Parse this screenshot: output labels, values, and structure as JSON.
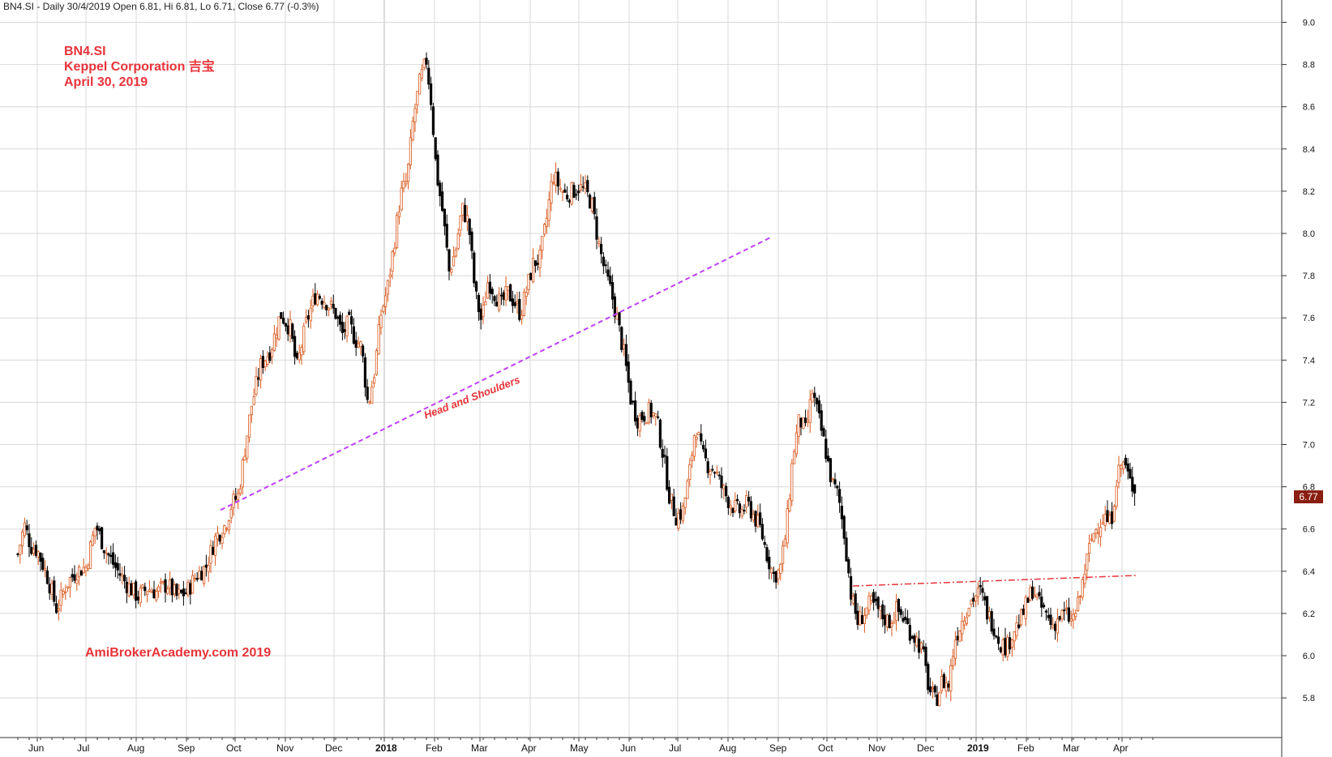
{
  "header": "BN4.SI - Daily 30/4/2019 Open 6.81, Hi 6.81, Lo 6.71, Close 6.77 (-0.3%)",
  "annotations": {
    "symbol": "BN4.SI",
    "company": "Keppel Corporation  吉宝",
    "date": "April 30, 2019",
    "watermark": "AmiBrokerAcademy.com 2019",
    "pattern_label": "Head and Shoulders"
  },
  "last_price_tag": "6.77",
  "colors": {
    "up_candle": "#d9581c",
    "down_candle": "#000000",
    "neckline": "#c040ff",
    "resistance": "#e8343a",
    "grid": "#d8d8d8",
    "annotation": "#e8343a",
    "price_tag": "#8a1e12"
  },
  "chart_data": {
    "type": "candlestick",
    "title": "",
    "xlabel": "",
    "ylabel": "",
    "ylim": [
      5.64,
      9.08
    ],
    "y_ticks": [
      "5.8",
      "6.0",
      "6.2",
      "6.4",
      "6.6",
      "6.8",
      "7.0",
      "7.2",
      "7.4",
      "7.6",
      "7.8",
      "8.0",
      "8.2",
      "8.4",
      "8.6",
      "8.8",
      "9.0"
    ],
    "x_ticks": [
      {
        "label": "Jun",
        "day": 0,
        "major": false
      },
      {
        "label": "Jul",
        "day": 30,
        "major": false
      },
      {
        "label": "Aug",
        "day": 61,
        "major": false
      },
      {
        "label": "Sep",
        "day": 92,
        "major": false
      },
      {
        "label": "Oct",
        "day": 122,
        "major": false
      },
      {
        "label": "Nov",
        "day": 153,
        "major": false
      },
      {
        "label": "Dec",
        "day": 183,
        "major": false
      },
      {
        "label": "2018",
        "day": 214,
        "major": true
      },
      {
        "label": "Feb",
        "day": 245,
        "major": false
      },
      {
        "label": "Mar",
        "day": 273,
        "major": false
      },
      {
        "label": "Apr",
        "day": 304,
        "major": false
      },
      {
        "label": "May",
        "day": 334,
        "major": false
      },
      {
        "label": "Jun",
        "day": 365,
        "major": false
      },
      {
        "label": "Jul",
        "day": 395,
        "major": false
      },
      {
        "label": "Aug",
        "day": 426,
        "major": false
      },
      {
        "label": "Sep",
        "day": 457,
        "major": false
      },
      {
        "label": "Oct",
        "day": 487,
        "major": false
      },
      {
        "label": "Nov",
        "day": 518,
        "major": false
      },
      {
        "label": "Dec",
        "day": 548,
        "major": false
      },
      {
        "label": "2019",
        "day": 579,
        "major": true
      },
      {
        "label": "Feb",
        "day": 610,
        "major": false
      },
      {
        "label": "Mar",
        "day": 638,
        "major": false
      },
      {
        "label": "Apr",
        "day": 669,
        "major": false
      }
    ],
    "close_path": [
      [
        -12,
        6.48
      ],
      [
        -8,
        6.62
      ],
      [
        -4,
        6.52
      ],
      [
        0,
        6.5
      ],
      [
        6,
        6.38
      ],
      [
        12,
        6.22
      ],
      [
        18,
        6.34
      ],
      [
        24,
        6.4
      ],
      [
        30,
        6.42
      ],
      [
        36,
        6.62
      ],
      [
        42,
        6.5
      ],
      [
        48,
        6.42
      ],
      [
        55,
        6.34
      ],
      [
        62,
        6.28
      ],
      [
        68,
        6.32
      ],
      [
        74,
        6.3
      ],
      [
        80,
        6.34
      ],
      [
        86,
        6.28
      ],
      [
        92,
        6.3
      ],
      [
        98,
        6.38
      ],
      [
        104,
        6.42
      ],
      [
        110,
        6.56
      ],
      [
        116,
        6.62
      ],
      [
        120,
        6.72
      ],
      [
        124,
        6.76
      ],
      [
        128,
        6.98
      ],
      [
        132,
        7.18
      ],
      [
        138,
        7.38
      ],
      [
        144,
        7.45
      ],
      [
        150,
        7.62
      ],
      [
        156,
        7.55
      ],
      [
        160,
        7.36
      ],
      [
        166,
        7.58
      ],
      [
        172,
        7.72
      ],
      [
        178,
        7.68
      ],
      [
        184,
        7.62
      ],
      [
        188,
        7.52
      ],
      [
        192,
        7.58
      ],
      [
        196,
        7.5
      ],
      [
        200,
        7.46
      ],
      [
        204,
        7.18
      ],
      [
        208,
        7.35
      ],
      [
        212,
        7.62
      ],
      [
        216,
        7.74
      ],
      [
        220,
        7.95
      ],
      [
        224,
        8.18
      ],
      [
        228,
        8.25
      ],
      [
        232,
        8.55
      ],
      [
        236,
        8.72
      ],
      [
        240,
        8.82
      ],
      [
        243,
        8.62
      ],
      [
        246,
        8.3
      ],
      [
        250,
        8.1
      ],
      [
        254,
        7.82
      ],
      [
        258,
        7.92
      ],
      [
        262,
        8.12
      ],
      [
        266,
        8.05
      ],
      [
        270,
        7.72
      ],
      [
        274,
        7.58
      ],
      [
        278,
        7.78
      ],
      [
        282,
        7.72
      ],
      [
        286,
        7.66
      ],
      [
        290,
        7.72
      ],
      [
        294,
        7.68
      ],
      [
        298,
        7.62
      ],
      [
        302,
        7.74
      ],
      [
        306,
        7.86
      ],
      [
        310,
        7.88
      ],
      [
        314,
        8.06
      ],
      [
        318,
        8.28
      ],
      [
        322,
        8.22
      ],
      [
        326,
        8.18
      ],
      [
        330,
        8.2
      ],
      [
        334,
        8.22
      ],
      [
        338,
        8.2
      ],
      [
        342,
        8.14
      ],
      [
        346,
        7.96
      ],
      [
        350,
        7.82
      ],
      [
        354,
        7.72
      ],
      [
        358,
        7.58
      ],
      [
        362,
        7.42
      ],
      [
        366,
        7.22
      ],
      [
        370,
        7.12
      ],
      [
        374,
        7.14
      ],
      [
        378,
        7.16
      ],
      [
        382,
        7.12
      ],
      [
        386,
        6.95
      ],
      [
        390,
        6.75
      ],
      [
        394,
        6.66
      ],
      [
        398,
        6.68
      ],
      [
        402,
        6.85
      ],
      [
        406,
        7.1
      ],
      [
        410,
        6.95
      ],
      [
        414,
        6.9
      ],
      [
        418,
        6.88
      ],
      [
        422,
        6.8
      ],
      [
        426,
        6.74
      ],
      [
        430,
        6.7
      ],
      [
        434,
        6.68
      ],
      [
        438,
        6.72
      ],
      [
        442,
        6.66
      ],
      [
        446,
        6.6
      ],
      [
        450,
        6.48
      ],
      [
        454,
        6.38
      ],
      [
        458,
        6.4
      ],
      [
        462,
        6.6
      ],
      [
        466,
        6.95
      ],
      [
        470,
        7.12
      ],
      [
        474,
        7.06
      ],
      [
        478,
        7.25
      ],
      [
        482,
        7.12
      ],
      [
        486,
        6.98
      ],
      [
        490,
        6.82
      ],
      [
        494,
        6.76
      ],
      [
        498,
        6.56
      ],
      [
        502,
        6.28
      ],
      [
        506,
        6.16
      ],
      [
        510,
        6.2
      ],
      [
        514,
        6.25
      ],
      [
        518,
        6.22
      ],
      [
        522,
        6.18
      ],
      [
        526,
        6.16
      ],
      [
        530,
        6.22
      ],
      [
        534,
        6.18
      ],
      [
        538,
        6.12
      ],
      [
        542,
        6.08
      ],
      [
        546,
        6.02
      ],
      [
        550,
        5.84
      ],
      [
        554,
        5.78
      ],
      [
        558,
        5.88
      ],
      [
        562,
        5.86
      ],
      [
        566,
        6.08
      ],
      [
        570,
        6.16
      ],
      [
        574,
        6.24
      ],
      [
        578,
        6.28
      ],
      [
        582,
        6.3
      ],
      [
        586,
        6.2
      ],
      [
        590,
        6.14
      ],
      [
        594,
        6.06
      ],
      [
        598,
        6.04
      ],
      [
        602,
        6.12
      ],
      [
        606,
        6.16
      ],
      [
        610,
        6.24
      ],
      [
        614,
        6.32
      ],
      [
        618,
        6.24
      ],
      [
        622,
        6.2
      ],
      [
        626,
        6.14
      ],
      [
        630,
        6.18
      ],
      [
        634,
        6.2
      ],
      [
        638,
        6.16
      ],
      [
        642,
        6.24
      ],
      [
        646,
        6.4
      ],
      [
        650,
        6.55
      ],
      [
        654,
        6.62
      ],
      [
        658,
        6.66
      ],
      [
        662,
        6.62
      ],
      [
        666,
        6.86
      ],
      [
        670,
        6.92
      ],
      [
        674,
        6.82
      ],
      [
        678,
        6.77
      ]
    ],
    "neckline": {
      "from": [
        113,
        6.69
      ],
      "to": [
        452,
        7.98
      ]
    },
    "resistance": {
      "from": [
        503,
        6.33
      ],
      "to": [
        678,
        6.38
      ]
    },
    "last_close": 6.77
  }
}
